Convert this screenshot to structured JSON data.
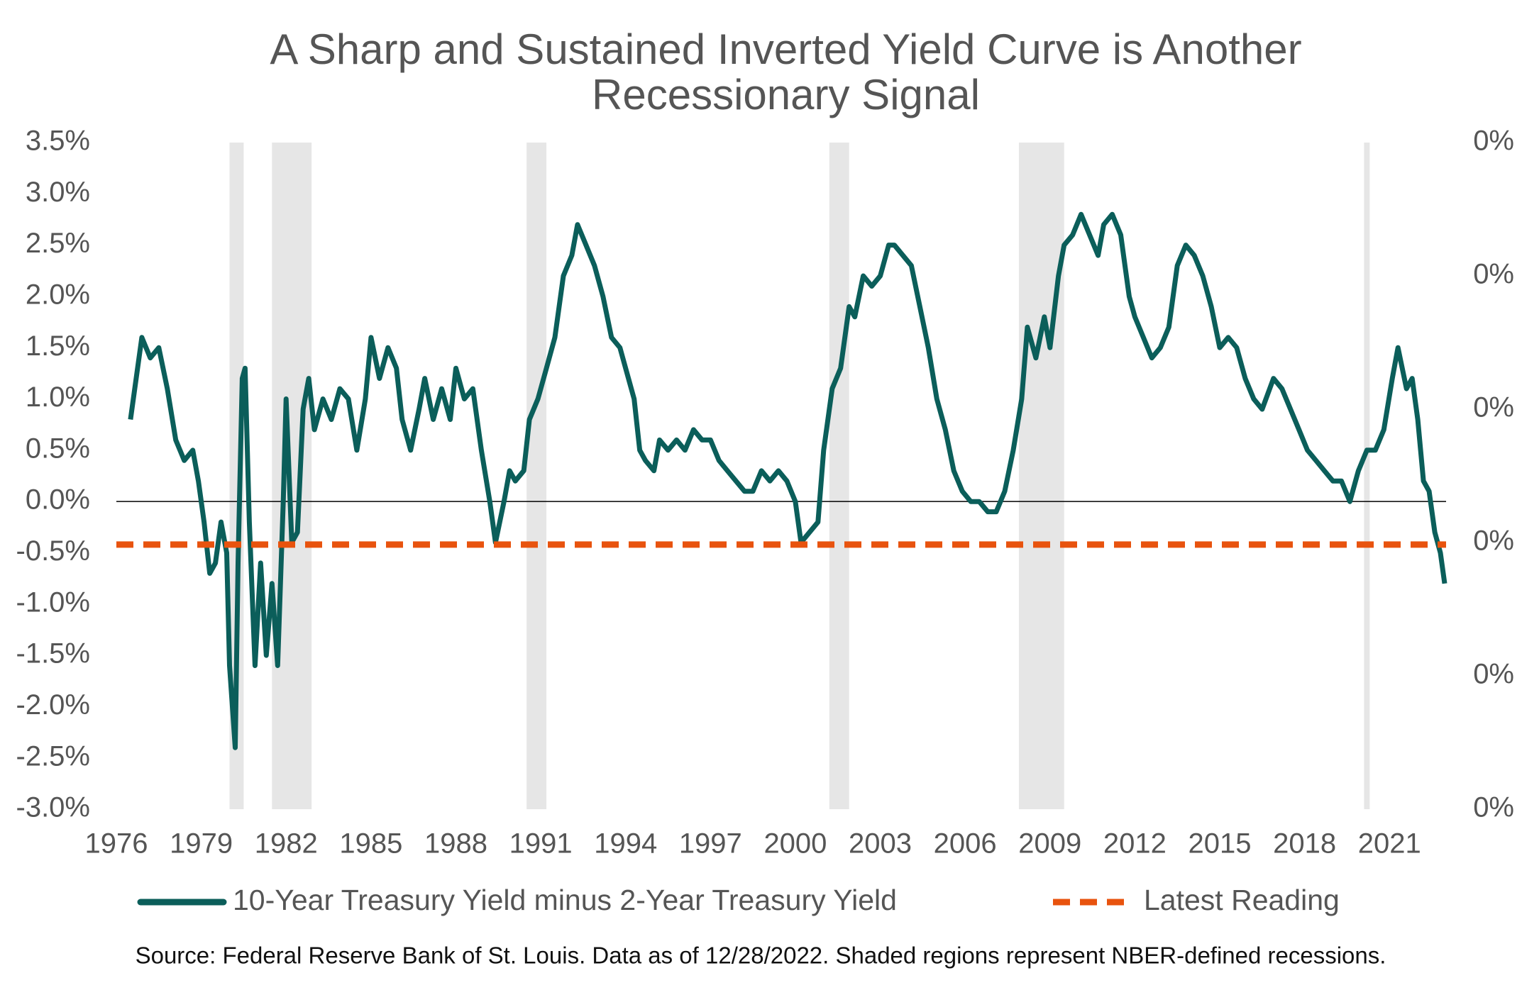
{
  "chart_data": {
    "type": "line",
    "title": "A Sharp and Sustained Inverted Yield Curve is Another\nRecessionary Signal",
    "source": "Source: Federal Reserve Bank of St. Louis. Data as of 12/28/2022. Shaded regions represent NBER-defined recessions.",
    "xlim": [
      1976,
      2023
    ],
    "xticks": [
      1976,
      1979,
      1982,
      1985,
      1988,
      1991,
      1994,
      1997,
      2000,
      2003,
      2006,
      2009,
      2012,
      2015,
      2018,
      2021
    ],
    "ylim": [
      -3.0,
      3.5
    ],
    "yticks": [
      {
        "value": -3.0,
        "label": "-3.0%"
      },
      {
        "value": -2.5,
        "label": "-2.5%"
      },
      {
        "value": -2.0,
        "label": "-2.0%"
      },
      {
        "value": -1.5,
        "label": "-1.5%"
      },
      {
        "value": -1.0,
        "label": "-1.0%"
      },
      {
        "value": -0.5,
        "label": "-0.5%"
      },
      {
        "value": 0.0,
        "label": "0.0%"
      },
      {
        "value": 0.5,
        "label": "0.5%"
      },
      {
        "value": 1.0,
        "label": "1.0%"
      },
      {
        "value": 1.5,
        "label": "1.5%"
      },
      {
        "value": 2.0,
        "label": "2.0%"
      },
      {
        "value": 2.5,
        "label": "2.5%"
      },
      {
        "value": 3.0,
        "label": "3.0%"
      },
      {
        "value": 3.5,
        "label": "3.5%"
      }
    ],
    "y2lim": [
      0,
      0.005
    ],
    "y2ticks": [
      {
        "value": 0,
        "label": "0%"
      },
      {
        "value": 0.001,
        "label": "0%"
      },
      {
        "value": 0.002,
        "label": "0%"
      },
      {
        "value": 0.003,
        "label": "0%"
      },
      {
        "value": 0.004,
        "label": "0%"
      },
      {
        "value": 0.005,
        "label": "0%"
      }
    ],
    "shaded_regions": [
      {
        "start": 1980.0,
        "end": 1980.5
      },
      {
        "start": 1981.5,
        "end": 1982.9
      },
      {
        "start": 1990.5,
        "end": 1991.2
      },
      {
        "start": 2001.2,
        "end": 2001.9
      },
      {
        "start": 2007.9,
        "end": 2009.5
      },
      {
        "start": 2020.1,
        "end": 2020.3
      }
    ],
    "series": [
      {
        "name": "10-Year Treasury Yield minus 2-Year Treasury Yield",
        "color": "#0b5e5a",
        "x": [
          1976.5,
          1976.7,
          1976.9,
          1977.2,
          1977.5,
          1977.8,
          1978.1,
          1978.4,
          1978.7,
          1978.9,
          1979.1,
          1979.3,
          1979.5,
          1979.7,
          1979.9,
          1980.0,
          1980.2,
          1980.3,
          1980.45,
          1980.55,
          1980.7,
          1980.9,
          1981.1,
          1981.3,
          1981.5,
          1981.7,
          1981.9,
          1982.0,
          1982.2,
          1982.4,
          1982.6,
          1982.8,
          1983.0,
          1983.3,
          1983.6,
          1983.9,
          1984.2,
          1984.5,
          1984.8,
          1985.0,
          1985.3,
          1985.6,
          1985.9,
          1986.1,
          1986.4,
          1986.7,
          1986.9,
          1987.2,
          1987.5,
          1987.8,
          1988.0,
          1988.3,
          1988.6,
          1988.9,
          1989.2,
          1989.4,
          1989.7,
          1989.9,
          1990.1,
          1990.4,
          1990.6,
          1990.9,
          1991.2,
          1991.5,
          1991.8,
          1992.1,
          1992.3,
          1992.6,
          1992.9,
          1993.2,
          1993.5,
          1993.8,
          1994.0,
          1994.3,
          1994.5,
          1994.7,
          1995.0,
          1995.2,
          1995.5,
          1995.8,
          1996.1,
          1996.4,
          1996.7,
          1997.0,
          1997.3,
          1997.6,
          1997.9,
          1998.2,
          1998.5,
          1998.8,
          1999.1,
          1999.4,
          1999.7,
          2000.0,
          2000.2,
          2000.5,
          2000.8,
          2001.0,
          2001.3,
          2001.6,
          2001.9,
          2002.1,
          2002.4,
          2002.7,
          2003.0,
          2003.3,
          2003.5,
          2003.8,
          2004.1,
          2004.4,
          2004.7,
          2005.0,
          2005.3,
          2005.6,
          2005.9,
          2006.2,
          2006.5,
          2006.8,
          2007.1,
          2007.4,
          2007.7,
          2008.0,
          2008.2,
          2008.5,
          2008.8,
          2009.0,
          2009.3,
          2009.5,
          2009.8,
          2010.1,
          2010.4,
          2010.7,
          2010.9,
          2011.2,
          2011.5,
          2011.8,
          2012.0,
          2012.3,
          2012.6,
          2012.9,
          2013.2,
          2013.5,
          2013.8,
          2014.1,
          2014.4,
          2014.7,
          2015.0,
          2015.3,
          2015.6,
          2015.9,
          2016.2,
          2016.5,
          2016.9,
          2017.2,
          2017.5,
          2017.8,
          2018.1,
          2018.4,
          2018.7,
          2019.0,
          2019.3,
          2019.6,
          2019.9,
          2020.2,
          2020.5,
          2020.8,
          2021.1,
          2021.3,
          2021.6,
          2021.8,
          2022.0,
          2022.2,
          2022.4,
          2022.6,
          2022.8,
          2022.95
        ],
        "values": [
          0.8,
          1.2,
          1.6,
          1.4,
          1.5,
          1.1,
          0.6,
          0.4,
          0.5,
          0.2,
          -0.2,
          -0.7,
          -0.6,
          -0.2,
          -0.5,
          -1.6,
          -2.4,
          -0.6,
          1.2,
          1.3,
          -0.2,
          -1.6,
          -0.6,
          -1.5,
          -0.8,
          -1.6,
          0.0,
          1.0,
          -0.4,
          -0.3,
          0.9,
          1.2,
          0.7,
          1.0,
          0.8,
          1.1,
          1.0,
          0.5,
          1.0,
          1.6,
          1.2,
          1.5,
          1.3,
          0.8,
          0.5,
          0.9,
          1.2,
          0.8,
          1.1,
          0.8,
          1.3,
          1.0,
          1.1,
          0.5,
          0.0,
          -0.4,
          0.0,
          0.3,
          0.2,
          0.3,
          0.8,
          1.0,
          1.3,
          1.6,
          2.2,
          2.4,
          2.7,
          2.5,
          2.3,
          2.0,
          1.6,
          1.5,
          1.3,
          1.0,
          0.5,
          0.4,
          0.3,
          0.6,
          0.5,
          0.6,
          0.5,
          0.7,
          0.6,
          0.6,
          0.4,
          0.3,
          0.2,
          0.1,
          0.1,
          0.3,
          0.2,
          0.3,
          0.2,
          0.0,
          -0.4,
          -0.3,
          -0.2,
          0.5,
          1.1,
          1.3,
          1.9,
          1.8,
          2.2,
          2.1,
          2.2,
          2.5,
          2.5,
          2.4,
          2.3,
          1.9,
          1.5,
          1.0,
          0.7,
          0.3,
          0.1,
          0.0,
          0.0,
          -0.1,
          -0.1,
          0.1,
          0.5,
          1.0,
          1.7,
          1.4,
          1.8,
          1.5,
          2.2,
          2.5,
          2.6,
          2.8,
          2.6,
          2.4,
          2.7,
          2.8,
          2.6,
          2.0,
          1.8,
          1.6,
          1.4,
          1.5,
          1.7,
          2.3,
          2.5,
          2.4,
          2.2,
          1.9,
          1.5,
          1.6,
          1.5,
          1.2,
          1.0,
          0.9,
          1.2,
          1.1,
          0.9,
          0.7,
          0.5,
          0.4,
          0.3,
          0.2,
          0.2,
          0.0,
          0.3,
          0.5,
          0.5,
          0.7,
          1.2,
          1.5,
          1.1,
          1.2,
          0.8,
          0.2,
          0.1,
          -0.3,
          -0.5,
          -0.8
        ]
      },
      {
        "name": "Latest Reading",
        "color": "#e8530e",
        "dashed": true,
        "values": [
          -0.42
        ]
      }
    ]
  }
}
